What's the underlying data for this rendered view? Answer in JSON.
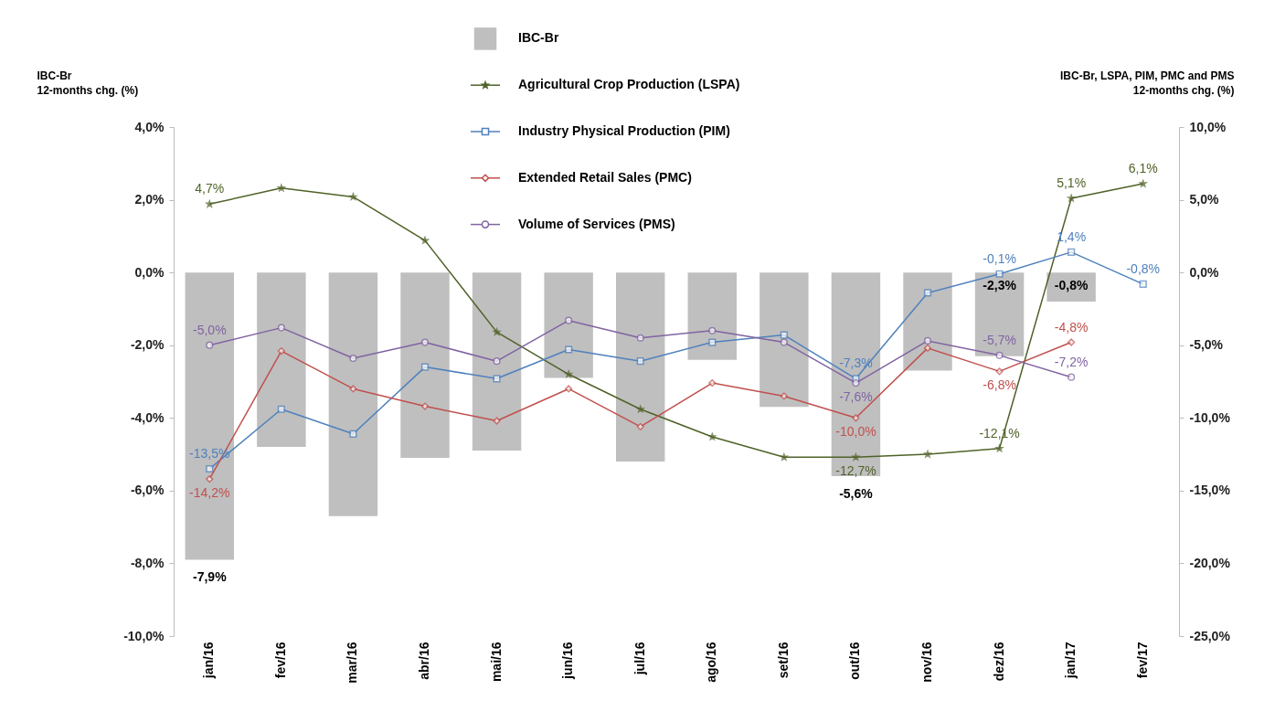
{
  "chart_data": {
    "type": "bar",
    "ylabel": "IBC-Br\n12-months chg. (%)",
    "y2label": "IBC-Br, LSPA, PIM, PMC and PMS\n12-months chg. (%)",
    "categories": [
      "jan/16",
      "fev/16",
      "mar/16",
      "abr/16",
      "mai/16",
      "jun/16",
      "jul/16",
      "ago/16",
      "set/16",
      "out/16",
      "nov/16",
      "dez/16",
      "jan/17",
      "fev/17"
    ],
    "ylim": [
      -10,
      4
    ],
    "yticks": [
      {
        "value": -10,
        "label": "-10,0%"
      },
      {
        "value": -8,
        "label": "-8,0%"
      },
      {
        "value": -6,
        "label": "-6,0%"
      },
      {
        "value": -4,
        "label": "-4,0%"
      },
      {
        "value": -2,
        "label": "-2,0%"
      },
      {
        "value": 0,
        "label": "0,0%"
      },
      {
        "value": 2,
        "label": "2,0%"
      },
      {
        "value": 4,
        "label": "4,0%"
      }
    ],
    "y2lim": [
      -25,
      10
    ],
    "y2ticks": [
      {
        "value": -25,
        "label": "-25,0%"
      },
      {
        "value": -20,
        "label": "-20,0%"
      },
      {
        "value": -15,
        "label": "-15,0%"
      },
      {
        "value": -10,
        "label": "-10,0%"
      },
      {
        "value": -5,
        "label": "-5,0%"
      },
      {
        "value": 0,
        "label": "0,0%"
      },
      {
        "value": 5,
        "label": "5,0%"
      },
      {
        "value": 10,
        "label": "10,0%"
      }
    ],
    "grid": false,
    "legend": "top",
    "series": [
      {
        "name": "IBC-Br",
        "color": "#bfbfbf",
        "values": [
          -7.9,
          -4.8,
          -6.7,
          -5.1,
          -4.9,
          -2.9,
          -5.2,
          -2.4,
          -3.7,
          -5.6,
          -2.7,
          -2.3,
          -0.8,
          null
        ],
        "value_labels": [
          "-7,9%",
          null,
          null,
          null,
          null,
          null,
          null,
          null,
          null,
          "-5,6%",
          null,
          "-2,3%",
          "-0,8%",
          null
        ]
      },
      {
        "name": "Agricultural Crop Production (LSPA)",
        "type": "line",
        "axis": "y2",
        "marker": "star",
        "color": "#4f6228",
        "values": [
          4.7,
          5.8,
          5.2,
          2.2,
          -4.1,
          -7.0,
          -9.4,
          -11.3,
          -12.7,
          -12.7,
          -12.5,
          -12.1,
          5.1,
          6.1
        ],
        "value_labels": [
          "4,7%",
          null,
          null,
          null,
          null,
          null,
          null,
          null,
          null,
          "-12,7%",
          null,
          "-12,1%",
          "5,1%",
          "6,1%"
        ]
      },
      {
        "name": "Industry Physical Production (PIM)",
        "type": "line",
        "axis": "y2",
        "marker": "square",
        "color": "#4f81bd",
        "values": [
          -13.5,
          -9.4,
          -11.1,
          -6.5,
          -7.3,
          -5.3,
          -6.1,
          -4.8,
          -4.3,
          -7.3,
          -1.4,
          -0.1,
          1.4,
          -0.8
        ],
        "value_labels": [
          "-13,5%",
          null,
          null,
          null,
          null,
          null,
          null,
          null,
          null,
          "-7,3%",
          null,
          "-0,1%",
          "1,4%",
          "-0,8%"
        ]
      },
      {
        "name": "Extended Retail Sales (PMC)",
        "type": "line",
        "axis": "y2",
        "marker": "diamond",
        "color": "#c0504d",
        "values": [
          -14.2,
          -5.4,
          -8.0,
          -9.2,
          -10.2,
          -8.0,
          -10.6,
          -7.6,
          -8.5,
          -10.0,
          -5.2,
          -6.8,
          -4.8,
          null
        ],
        "value_labels": [
          "-14,2%",
          null,
          null,
          null,
          null,
          null,
          null,
          null,
          null,
          "-10,0%",
          null,
          "-6,8%",
          "-4,8%",
          null
        ]
      },
      {
        "name": "Volume of Services (PMS)",
        "type": "line",
        "axis": "y2",
        "marker": "circle",
        "color": "#8064a2",
        "values": [
          -5.0,
          -3.8,
          -5.9,
          -4.8,
          -6.1,
          -3.3,
          -4.5,
          -4.0,
          -4.8,
          -7.6,
          -4.7,
          -5.7,
          -7.2,
          null
        ],
        "value_labels": [
          "-5,0%",
          null,
          null,
          null,
          null,
          null,
          null,
          null,
          null,
          "-7,6%",
          null,
          "-5,7%",
          "-7,2%",
          null
        ]
      }
    ]
  }
}
